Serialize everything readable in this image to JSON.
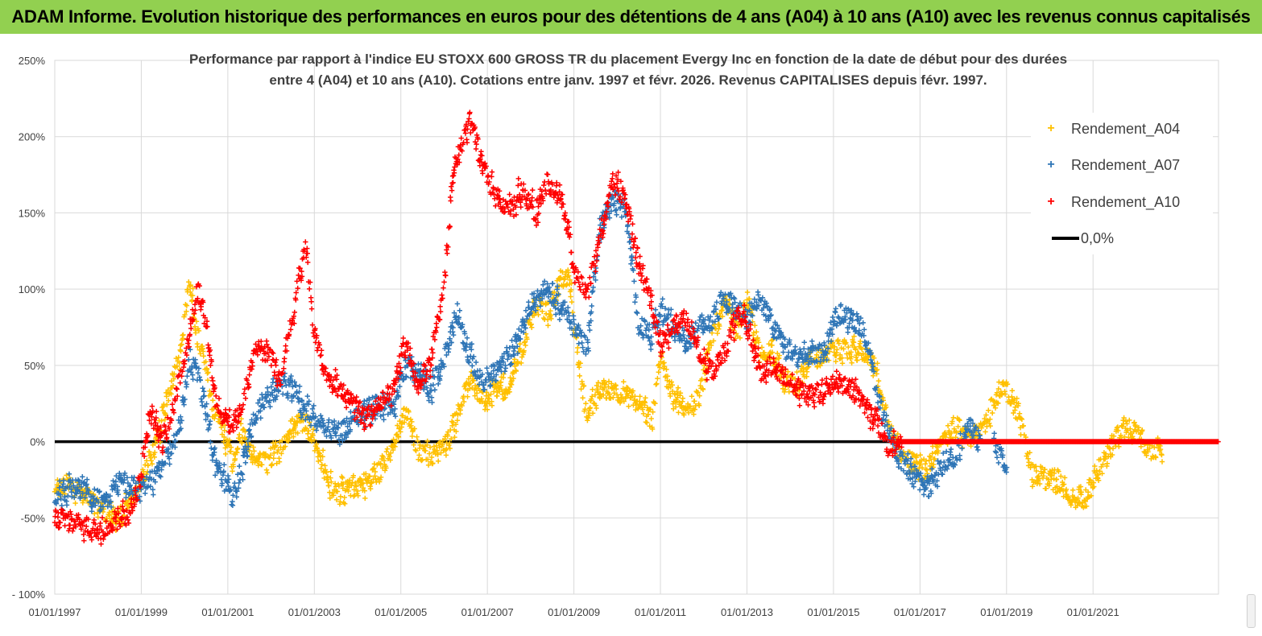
{
  "header": {
    "title": "ADAM Informe. Evolution historique des performances en euros pour des détentions de 4 ans (A04) à 10 ans (A10) avec les revenus connus capitalisés"
  },
  "colors": {
    "banner": "#92d050",
    "a04": "#ffc000",
    "a07": "#2e75b6",
    "a10": "#ff0000",
    "zero_line": "#000000",
    "grid": "#d9d9d9"
  },
  "chart_data": {
    "type": "scatter",
    "title_lines": [
      "Performance par rapport à l'indice EU STOXX 600 GROSS TR  du placement Evergy Inc en fonction de la date de début pour des durées",
      "entre 4 (A04) et 10 ans (A10). Cotations entre janv. 1997 et févr. 2026. Revenus CAPITALISES depuis févr. 1997."
    ],
    "xlabel": "",
    "ylabel": "",
    "x_range": [
      1997.0,
      2023.9
    ],
    "ylim": [
      -100,
      250
    ],
    "y_ticks": [
      -100,
      -50,
      0,
      50,
      100,
      150,
      200,
      250
    ],
    "y_tick_labels": [
      "- 100%",
      "-50%",
      "0%",
      "50%",
      "100%",
      "150%",
      "200%",
      "250%"
    ],
    "x_ticks": [
      1997,
      1999,
      2001,
      2003,
      2005,
      2007,
      2009,
      2011,
      2013,
      2015,
      2017,
      2019,
      2021
    ],
    "x_tick_labels": [
      "01/01/1997",
      "01/01/1999",
      "01/01/2001",
      "01/01/2003",
      "01/01/2005",
      "01/01/2007",
      "01/01/2009",
      "01/01/2011",
      "01/01/2013",
      "01/01/2015",
      "01/01/2017",
      "01/01/2019",
      "01/01/2021"
    ],
    "grid": true,
    "legend_position": "top-right",
    "marker": "+",
    "series": [
      {
        "name": "Rendement_A04",
        "color_key": "a04",
        "x": [
          1997.0,
          1997.3,
          1997.6,
          1997.9,
          1998.2,
          1998.5,
          1998.8,
          1999.0,
          1999.3,
          1999.6,
          1999.9,
          2000.1,
          2000.3,
          2000.5,
          2000.7,
          2000.9,
          2001.1,
          2001.3,
          2001.6,
          2001.9,
          2002.2,
          2002.5,
          2002.8,
          2003.0,
          2003.3,
          2003.6,
          2003.9,
          2004.2,
          2004.5,
          2004.8,
          2005.1,
          2005.4,
          2005.7,
          2006.0,
          2006.3,
          2006.6,
          2006.9,
          2007.2,
          2007.5,
          2007.8,
          2008.1,
          2008.4,
          2008.7,
          2008.9,
          2009.0,
          2009.3,
          2009.6,
          2009.9,
          2010.2,
          2010.5,
          2010.8,
          2011.0,
          2011.3,
          2011.6,
          2011.9,
          2012.2,
          2012.5,
          2012.8,
          2013.0,
          2013.3,
          2013.6,
          2013.9,
          2014.2,
          2014.5,
          2014.8,
          2015.1,
          2015.4,
          2015.7,
          2016.0,
          2016.3,
          2016.6,
          2016.9,
          2017.2,
          2017.5,
          2017.8,
          2018.1,
          2018.4,
          2018.7,
          2019.0,
          2019.3,
          2019.6,
          2019.9,
          2020.2,
          2020.5,
          2020.8,
          2021.1,
          2021.4,
          2021.7,
          2022.0,
          2022.3,
          2022.6
        ],
        "y": [
          -35,
          -28,
          -32,
          -40,
          -45,
          -50,
          -40,
          -25,
          -5,
          30,
          60,
          105,
          70,
          45,
          20,
          5,
          -15,
          5,
          -10,
          -15,
          -5,
          10,
          15,
          0,
          -25,
          -35,
          -30,
          -25,
          -20,
          -5,
          20,
          -5,
          -10,
          -5,
          20,
          40,
          30,
          35,
          35,
          60,
          90,
          85,
          105,
          110,
          75,
          15,
          35,
          35,
          30,
          25,
          15,
          55,
          30,
          20,
          30,
          70,
          90,
          70,
          95,
          55,
          60,
          35,
          40,
          55,
          55,
          60,
          60,
          60,
          45,
          5,
          -10,
          -15,
          -20,
          0,
          10,
          5,
          5,
          25,
          35,
          15,
          -20,
          -25,
          -25,
          -35,
          -40,
          -20,
          -5,
          10,
          5,
          -5,
          -10
        ]
      },
      {
        "name": "Rendement_A07",
        "color_key": "a07",
        "x": [
          1997.0,
          1997.3,
          1997.6,
          1997.9,
          1998.2,
          1998.5,
          1998.8,
          1999.0,
          1999.3,
          1999.6,
          1999.9,
          2000.1,
          2000.3,
          2000.5,
          2000.7,
          2000.9,
          2001.1,
          2001.3,
          2001.6,
          2001.9,
          2002.2,
          2002.5,
          2002.8,
          2003.0,
          2003.3,
          2003.6,
          2003.9,
          2004.2,
          2004.5,
          2004.8,
          2005.1,
          2005.4,
          2005.7,
          2006.0,
          2006.3,
          2006.6,
          2006.9,
          2007.2,
          2007.5,
          2007.8,
          2008.1,
          2008.4,
          2008.7,
          2008.9,
          2009.0,
          2009.3,
          2009.6,
          2009.9,
          2010.2,
          2010.5,
          2010.8,
          2011.0,
          2011.3,
          2011.6,
          2011.9,
          2012.2,
          2012.5,
          2012.8,
          2013.0,
          2013.3,
          2013.6,
          2013.9,
          2014.2,
          2014.5,
          2014.8,
          2015.1,
          2015.4,
          2015.7,
          2016.0,
          2016.3,
          2016.6,
          2016.9,
          2017.2,
          2017.5,
          2017.8,
          2018.1,
          2018.4,
          2018.7,
          2019.0
        ],
        "y": [
          -40,
          -32,
          -30,
          -38,
          -40,
          -25,
          -30,
          -30,
          -25,
          -10,
          10,
          55,
          45,
          20,
          -15,
          -25,
          -35,
          -20,
          15,
          30,
          35,
          35,
          20,
          15,
          10,
          5,
          15,
          20,
          25,
          20,
          50,
          45,
          35,
          55,
          85,
          55,
          40,
          45,
          55,
          75,
          95,
          100,
          90,
          80,
          75,
          60,
          140,
          160,
          150,
          75,
          70,
          85,
          75,
          65,
          75,
          80,
          95,
          85,
          80,
          95,
          75,
          60,
          55,
          55,
          60,
          85,
          80,
          75,
          30,
          5,
          -15,
          -25,
          -30,
          -15,
          -10,
          10,
          0,
          0,
          -20
        ]
      },
      {
        "name": "Rendement_A10",
        "color_key": "a10",
        "x": [
          1997.0,
          1997.3,
          1997.6,
          1997.9,
          1998.2,
          1998.5,
          1998.8,
          1999.0,
          1999.2,
          1999.5,
          1999.8,
          2000.1,
          2000.3,
          2000.5,
          2000.7,
          2000.9,
          2001.1,
          2001.3,
          2001.6,
          2001.9,
          2002.2,
          2002.5,
          2002.8,
          2003.0,
          2003.3,
          2003.6,
          2003.9,
          2004.2,
          2004.5,
          2004.8,
          2005.1,
          2005.4,
          2005.7,
          2006.0,
          2006.2,
          2006.4,
          2006.6,
          2006.9,
          2007.2,
          2007.5,
          2007.8,
          2008.1,
          2008.4,
          2008.7,
          2008.9,
          2009.0,
          2009.3,
          2009.6,
          2009.9,
          2010.2,
          2010.5,
          2010.8,
          2011.0,
          2011.3,
          2011.6,
          2011.9,
          2012.2,
          2012.5,
          2012.8,
          2013.0,
          2013.3,
          2013.6,
          2013.9,
          2014.2,
          2014.5,
          2014.8,
          2015.1,
          2015.4,
          2015.7,
          2016.0,
          2016.3,
          2016.6,
          2017.0,
          2017.5,
          2018.0,
          2018.5,
          2019.0,
          2019.5,
          2020.0,
          2020.5,
          2021.0,
          2021.5,
          2022.0,
          2022.5,
          2023.0,
          2023.5,
          2023.9
        ],
        "y": [
          -50,
          -52,
          -55,
          -58,
          -55,
          -50,
          -45,
          -20,
          20,
          0,
          30,
          70,
          100,
          80,
          30,
          15,
          10,
          20,
          60,
          60,
          40,
          85,
          130,
          70,
          40,
          35,
          25,
          15,
          25,
          30,
          65,
          35,
          55,
          100,
          175,
          195,
          210,
          180,
          160,
          155,
          165,
          150,
          170,
          160,
          135,
          110,
          95,
          135,
          170,
          160,
          115,
          90,
          65,
          75,
          80,
          60,
          45,
          60,
          85,
          75,
          45,
          50,
          40,
          35,
          30,
          35,
          40,
          35,
          25,
          15,
          -5,
          0,
          0,
          0,
          0,
          0,
          0,
          0,
          0,
          0,
          0,
          0,
          0,
          0,
          0,
          0,
          0
        ]
      },
      {
        "name": "0,0%",
        "color_key": "zero_line",
        "x": [
          1997.0,
          2023.9
        ],
        "y": [
          0,
          0
        ]
      }
    ]
  }
}
